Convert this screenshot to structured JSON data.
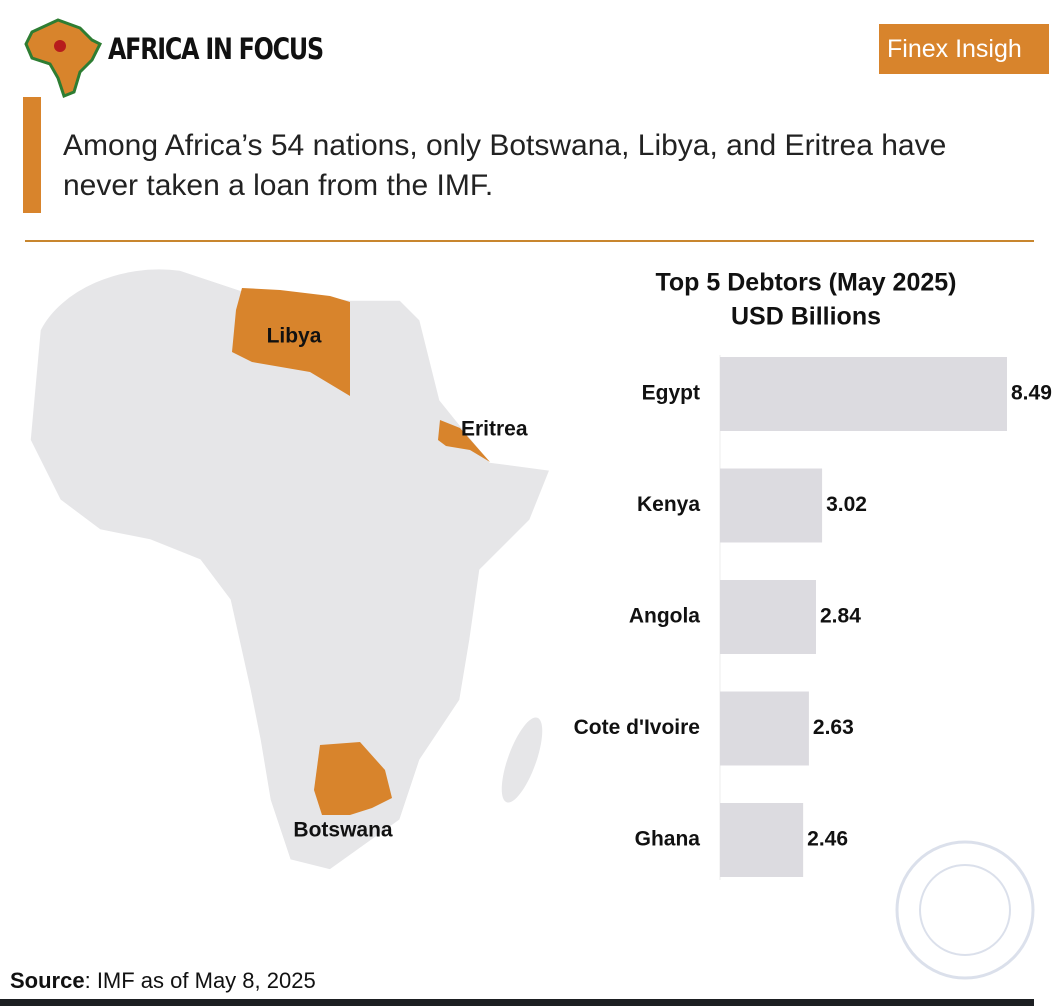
{
  "header": {
    "brand": "AFRICA IN FOCUS",
    "badge": "Finex Insigh"
  },
  "headline": {
    "line1": "Among Africa’s 54 nations, only Botswana, Libya, and Eritrea have",
    "line2": "never taken a loan from the IMF."
  },
  "map": {
    "labels": [
      "Libya",
      "Eritrea",
      "Botswana"
    ]
  },
  "chart_data": {
    "type": "bar",
    "orientation": "horizontal",
    "title": "Top 5 Debtors (May 2025)",
    "subtitle": "USD Billions",
    "categories": [
      "Egypt",
      "Kenya",
      "Angola",
      "Cote d'Ivoire",
      "Ghana"
    ],
    "values": [
      8.49,
      3.02,
      2.84,
      2.63,
      2.46
    ],
    "color": "#dcdbe0"
  },
  "source": {
    "label": "Source",
    "text": ": IMF as of May 8, 2025"
  }
}
